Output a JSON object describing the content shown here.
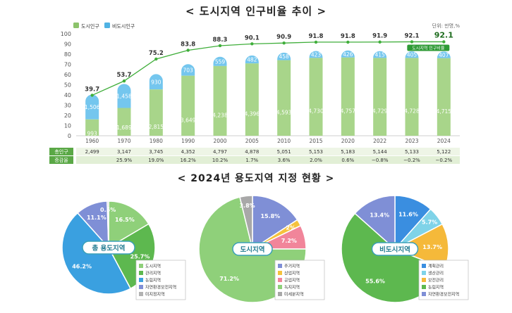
{
  "header": {
    "title": "< 도시지역 인구비율 추이 >",
    "unit": "단위: 만명,%"
  },
  "legend_top": {
    "urban": "도시인구",
    "nonurban": "비도시인구"
  },
  "colors": {
    "urban": "#a8d58a",
    "urban_dark": "#8cc36b",
    "nonurban": "#74c6ee",
    "nonurban_dark": "#4fb2e3",
    "line": "#3fae3a",
    "table_label_bg": "#5aa846",
    "table_row1": "#eef5e6",
    "table_row2": "#e2efd6"
  },
  "chart_data": [
    {
      "type": "bar",
      "title": "< 도시지역 인구비율 추이 >",
      "categories": [
        "1960",
        "1970",
        "1980",
        "1990",
        "2000",
        "2005",
        "2010",
        "2015",
        "2020",
        "2022",
        "2023",
        "2024"
      ],
      "series": [
        {
          "name": "도시인구",
          "values": [
            993,
            1689,
            2815,
            3649,
            4238,
            4396,
            4593,
            4730,
            4757,
            4729,
            4728,
            4715
          ],
          "labels": [
            "993",
            "1,689",
            "2,815",
            "3,649",
            "4,238",
            "4,396",
            "4,593",
            "4,730",
            "4,757",
            "4,729",
            "4,728",
            "4,715"
          ]
        },
        {
          "name": "비도시인구",
          "values": [
            1506,
            1458,
            930,
            703,
            559,
            482,
            458,
            423,
            426,
            415,
            405,
            407
          ],
          "labels": [
            "1,506",
            "1,458",
            "930",
            "703",
            "559",
            "482",
            "458",
            "423",
            "426",
            "415",
            "405",
            "407"
          ]
        },
        {
          "name": "도시지역 인구비율",
          "values": [
            39.7,
            53.7,
            75.2,
            83.8,
            88.3,
            90.1,
            90.9,
            91.8,
            91.8,
            91.9,
            92.1,
            92.1
          ]
        }
      ],
      "yticks": [
        "0",
        "10",
        "20",
        "30",
        "40",
        "50",
        "60",
        "70",
        "80",
        "90",
        "100"
      ],
      "ylim": [
        0,
        100
      ],
      "last_point_label": "도시지역 인구비율",
      "table": {
        "rows": [
          {
            "label": "총인구",
            "values": [
              "2,499",
              "3,147",
              "3,745",
              "4,352",
              "4,797",
              "4,878",
              "5,051",
              "5,153",
              "5,183",
              "5,144",
              "5,133",
              "5,122"
            ]
          },
          {
            "label": "증감율",
            "values": [
              "",
              "25.9%",
              "19.0%",
              "16.2%",
              "10.2%",
              "1.7%",
              "3.6%",
              "2.0%",
              "0.6%",
              "−0.8%",
              "−0.2%",
              "−0.2%"
            ]
          }
        ]
      }
    },
    {
      "type": "pie",
      "center_label": "총 용도지역",
      "slices": [
        {
          "name": "도시지역",
          "value": 16.5,
          "label": "16.5%",
          "color": "#8fd07a"
        },
        {
          "name": "관리지역",
          "value": 25.7,
          "label": "25.7%",
          "color": "#5db84f"
        },
        {
          "name": "농림지역",
          "value": 46.2,
          "label": "46.2%",
          "color": "#3aa0e0"
        },
        {
          "name": "자연환경보전지역",
          "value": 11.1,
          "label": "11.1%",
          "color": "#7f8fd6"
        },
        {
          "name": "미지정지역",
          "value": 0.5,
          "label": "0.5%",
          "color": "#b2b2b2"
        }
      ]
    },
    {
      "type": "pie",
      "center_label": "도시지역",
      "slices": [
        {
          "name": "주거지역",
          "value": 15.8,
          "label": "15.8%",
          "color": "#7f8fd6"
        },
        {
          "name": "상업지역",
          "value": 2,
          "label": "2%",
          "color": "#f5c23c"
        },
        {
          "name": "공업지역",
          "value": 7.2,
          "label": "7.2%",
          "color": "#f1859a"
        },
        {
          "name": "녹지지역",
          "value": 71.2,
          "label": "71.2%",
          "color": "#8fd07a"
        },
        {
          "name": "미세분지역",
          "value": 3.8,
          "label": "3.8%",
          "color": "#a8a8a8"
        }
      ]
    },
    {
      "type": "pie",
      "center_label": "비도시지역",
      "slices": [
        {
          "name": "계획관리",
          "value": 11.6,
          "label": "11.6%",
          "color": "#3a8ee0"
        },
        {
          "name": "생산관리",
          "value": 5.7,
          "label": "5.7%",
          "color": "#7fd3e8"
        },
        {
          "name": "보전관리",
          "value": 13.7,
          "label": "13.7%",
          "color": "#f5b93a"
        },
        {
          "name": "농림지역",
          "value": 55.6,
          "label": "55.6%",
          "color": "#5db84f"
        },
        {
          "name": "자연환경보전지역",
          "value": 13.4,
          "label": "13.4%",
          "color": "#7f8fd6"
        }
      ]
    }
  ],
  "section2": {
    "title": "< 2024년 용도지역 지정 현황 >"
  }
}
